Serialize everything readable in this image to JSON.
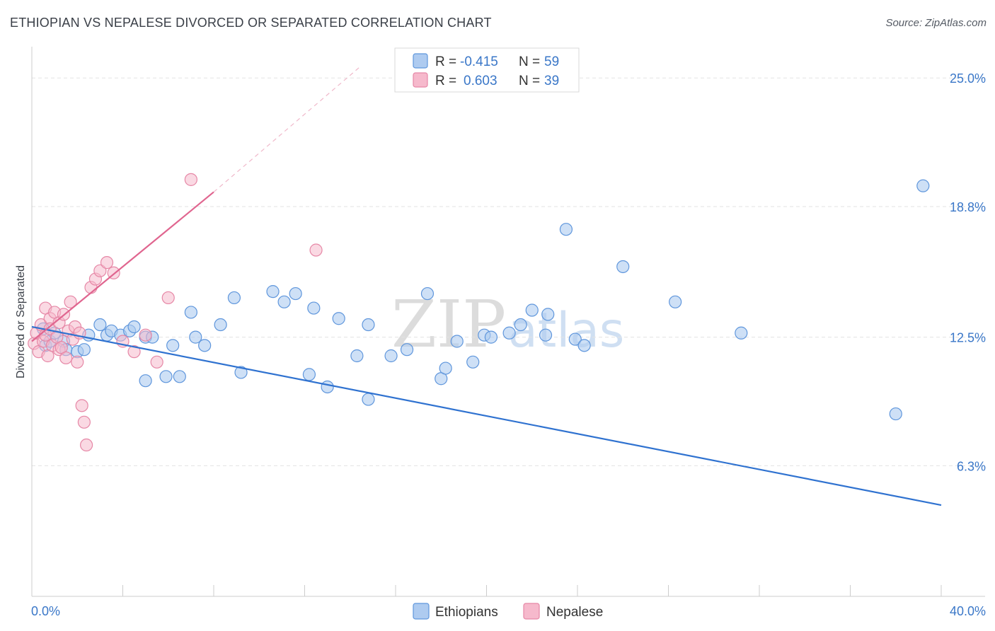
{
  "header": {
    "title": "ETHIOPIAN VS NEPALESE DIVORCED OR SEPARATED CORRELATION CHART",
    "source": "Source: ZipAtlas.com"
  },
  "watermark": {
    "zip": "ZIP",
    "atlas": "atlas"
  },
  "colors": {
    "ethiopians_fill": "#aecbf0",
    "ethiopians_stroke": "#5f96dc",
    "ethiopians_line": "#2f72d0",
    "nepalese_fill": "#f6b9cc",
    "nepalese_stroke": "#e687a6",
    "nepalese_line": "#e0658f",
    "grid": "#e3e3e3",
    "axis_text": "#3a77c8"
  },
  "legend": {
    "rows": [
      {
        "r_label": "R = ",
        "r_value": "-0.415",
        "n_label": "N = ",
        "n_value": "59"
      },
      {
        "r_label": "R = ",
        "r_value": "0.603",
        "n_label": "N = ",
        "n_value": "39"
      }
    ]
  },
  "chart_data": {
    "type": "scatter",
    "title": "ETHIOPIAN VS NEPALESE DIVORCED OR SEPARATED CORRELATION CHART",
    "xlabel": "",
    "ylabel": "Divorced or Separated",
    "xlim": [
      0,
      40
    ],
    "ylim": [
      0,
      26.1
    ],
    "x_tick_labels": [
      "0.0%",
      "40.0%"
    ],
    "y_ticks": [
      6.3,
      12.5,
      18.8,
      25.0
    ],
    "y_tick_labels": [
      "6.3%",
      "12.5%",
      "18.8%",
      "25.0%"
    ],
    "grid": true,
    "legend_position": "top-center",
    "series": [
      {
        "name": "Ethiopians",
        "r": -0.415,
        "n": 59,
        "trend": {
          "x": [
            0,
            40
          ],
          "y": [
            13.0,
            4.4
          ],
          "style": "solid"
        },
        "points": [
          [
            0.5,
            12.9
          ],
          [
            0.6,
            12.1
          ],
          [
            0.8,
            12.3
          ],
          [
            1.0,
            12.7
          ],
          [
            1.4,
            12.3
          ],
          [
            1.5,
            11.9
          ],
          [
            2.0,
            11.8
          ],
          [
            2.3,
            11.9
          ],
          [
            2.5,
            12.6
          ],
          [
            3.0,
            13.1
          ],
          [
            3.3,
            12.6
          ],
          [
            3.5,
            12.8
          ],
          [
            3.9,
            12.6
          ],
          [
            4.3,
            12.8
          ],
          [
            4.5,
            13.0
          ],
          [
            5.0,
            12.5
          ],
          [
            5.0,
            10.4
          ],
          [
            5.3,
            12.5
          ],
          [
            5.9,
            10.6
          ],
          [
            6.2,
            12.1
          ],
          [
            6.5,
            10.6
          ],
          [
            7.0,
            13.7
          ],
          [
            7.2,
            12.5
          ],
          [
            7.6,
            12.1
          ],
          [
            8.3,
            13.1
          ],
          [
            8.9,
            14.4
          ],
          [
            9.2,
            10.8
          ],
          [
            10.6,
            14.7
          ],
          [
            11.1,
            14.2
          ],
          [
            11.6,
            14.6
          ],
          [
            12.2,
            10.7
          ],
          [
            12.4,
            13.9
          ],
          [
            13.0,
            10.1
          ],
          [
            13.5,
            13.4
          ],
          [
            14.3,
            11.6
          ],
          [
            14.8,
            13.1
          ],
          [
            14.8,
            9.5
          ],
          [
            15.8,
            11.6
          ],
          [
            16.5,
            11.9
          ],
          [
            17.4,
            14.6
          ],
          [
            18.0,
            10.5
          ],
          [
            18.2,
            11.0
          ],
          [
            18.7,
            12.3
          ],
          [
            19.4,
            11.3
          ],
          [
            19.9,
            12.6
          ],
          [
            20.2,
            12.5
          ],
          [
            21.0,
            12.7
          ],
          [
            21.5,
            13.1
          ],
          [
            22.0,
            13.8
          ],
          [
            22.7,
            13.6
          ],
          [
            22.6,
            12.6
          ],
          [
            23.5,
            17.7
          ],
          [
            23.9,
            12.4
          ],
          [
            24.3,
            12.1
          ],
          [
            26.0,
            15.9
          ],
          [
            28.3,
            14.2
          ],
          [
            31.2,
            12.7
          ],
          [
            39.2,
            19.8
          ],
          [
            38.0,
            8.8
          ]
        ]
      },
      {
        "name": "Nepalese",
        "r": 0.603,
        "n": 39,
        "trend": {
          "x": [
            0,
            8
          ],
          "y": [
            12.3,
            19.5
          ],
          "style": "solid",
          "dashed_extension": {
            "x": [
              8,
              14.5
            ],
            "y": [
              19.5,
              25.6
            ]
          }
        },
        "points": [
          [
            0.1,
            12.2
          ],
          [
            0.2,
            12.7
          ],
          [
            0.3,
            11.8
          ],
          [
            0.4,
            13.1
          ],
          [
            0.5,
            12.3
          ],
          [
            0.6,
            13.9
          ],
          [
            0.6,
            12.6
          ],
          [
            0.7,
            11.6
          ],
          [
            0.8,
            13.4
          ],
          [
            0.8,
            12.9
          ],
          [
            0.9,
            12.1
          ],
          [
            1.0,
            13.7
          ],
          [
            1.1,
            12.5
          ],
          [
            1.2,
            11.9
          ],
          [
            1.2,
            13.2
          ],
          [
            1.3,
            12.0
          ],
          [
            1.4,
            13.6
          ],
          [
            1.5,
            11.5
          ],
          [
            1.6,
            12.8
          ],
          [
            1.7,
            14.2
          ],
          [
            1.8,
            12.4
          ],
          [
            1.9,
            13.0
          ],
          [
            2.0,
            11.3
          ],
          [
            2.1,
            12.7
          ],
          [
            2.2,
            9.2
          ],
          [
            2.3,
            8.4
          ],
          [
            2.4,
            7.3
          ],
          [
            2.6,
            14.9
          ],
          [
            2.8,
            15.3
          ],
          [
            3.0,
            15.7
          ],
          [
            3.3,
            16.1
          ],
          [
            3.6,
            15.6
          ],
          [
            4.0,
            12.3
          ],
          [
            4.5,
            11.8
          ],
          [
            5.0,
            12.6
          ],
          [
            5.5,
            11.3
          ],
          [
            6.0,
            14.4
          ],
          [
            7.0,
            20.1
          ],
          [
            12.5,
            16.7
          ]
        ]
      }
    ],
    "series_legend": [
      "Ethiopians",
      "Nepalese"
    ]
  }
}
